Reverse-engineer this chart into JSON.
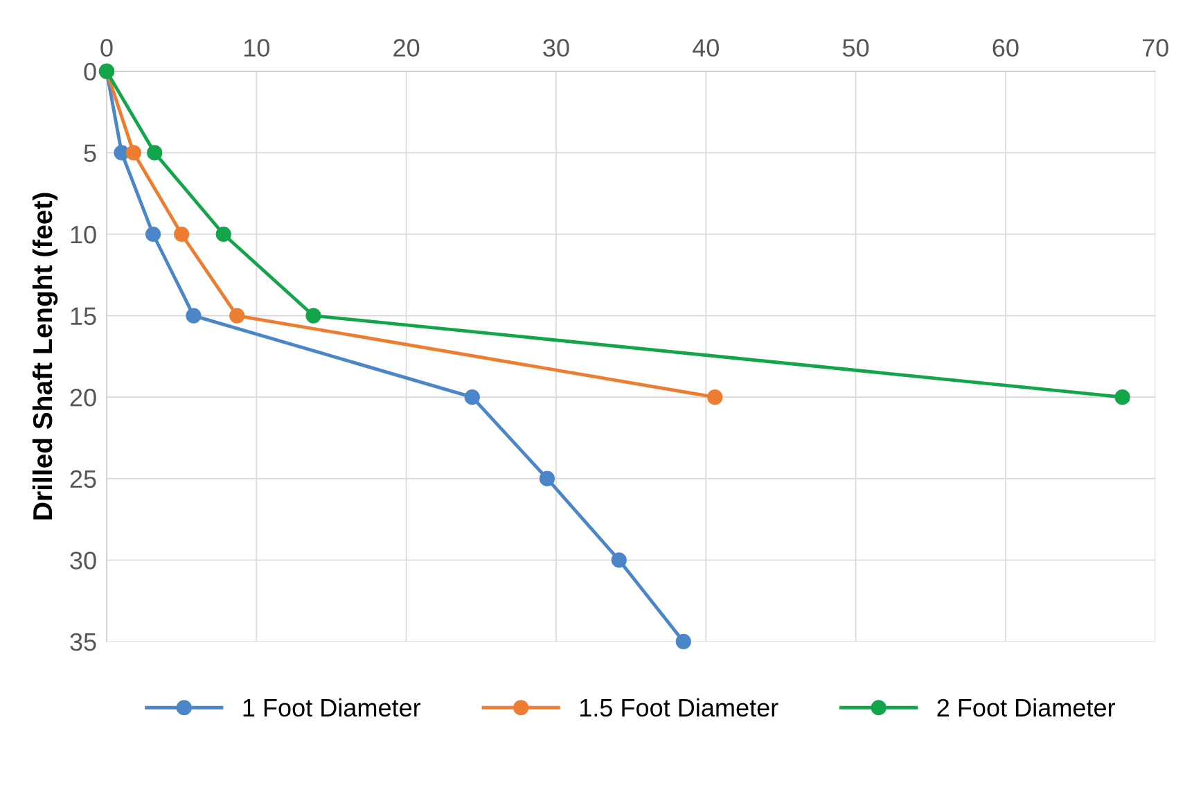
{
  "chart_data": {
    "type": "line",
    "ylabel": "Drilled Shaft Lenght (feet)",
    "xlim": [
      0,
      70
    ],
    "xticks": [
      0,
      10,
      20,
      30,
      40,
      50,
      60,
      70
    ],
    "ylim": [
      35,
      0
    ],
    "yticks": [
      0,
      5,
      10,
      15,
      20,
      25,
      30,
      35
    ],
    "grid": true,
    "legend": "bottom",
    "marker": "circle",
    "line_style": "solid",
    "series": [
      {
        "name": "1 Foot Diameter",
        "color": "#4a86c8",
        "x": [
          0,
          1.0,
          3.1,
          5.8,
          24.4,
          29.4,
          34.2,
          38.5
        ],
        "values": [
          0,
          5,
          10,
          15,
          20,
          25,
          30,
          35
        ]
      },
      {
        "name": "1.5 Foot Diameter",
        "color": "#ed7d31",
        "x": [
          0,
          1.8,
          5.0,
          8.7,
          40.6
        ],
        "values": [
          0,
          5,
          10,
          15,
          20
        ]
      },
      {
        "name": "2 Foot Diameter",
        "color": "#13a54a",
        "x": [
          0,
          3.2,
          7.8,
          13.8,
          67.8
        ],
        "values": [
          0,
          5,
          10,
          15,
          20
        ]
      }
    ]
  }
}
